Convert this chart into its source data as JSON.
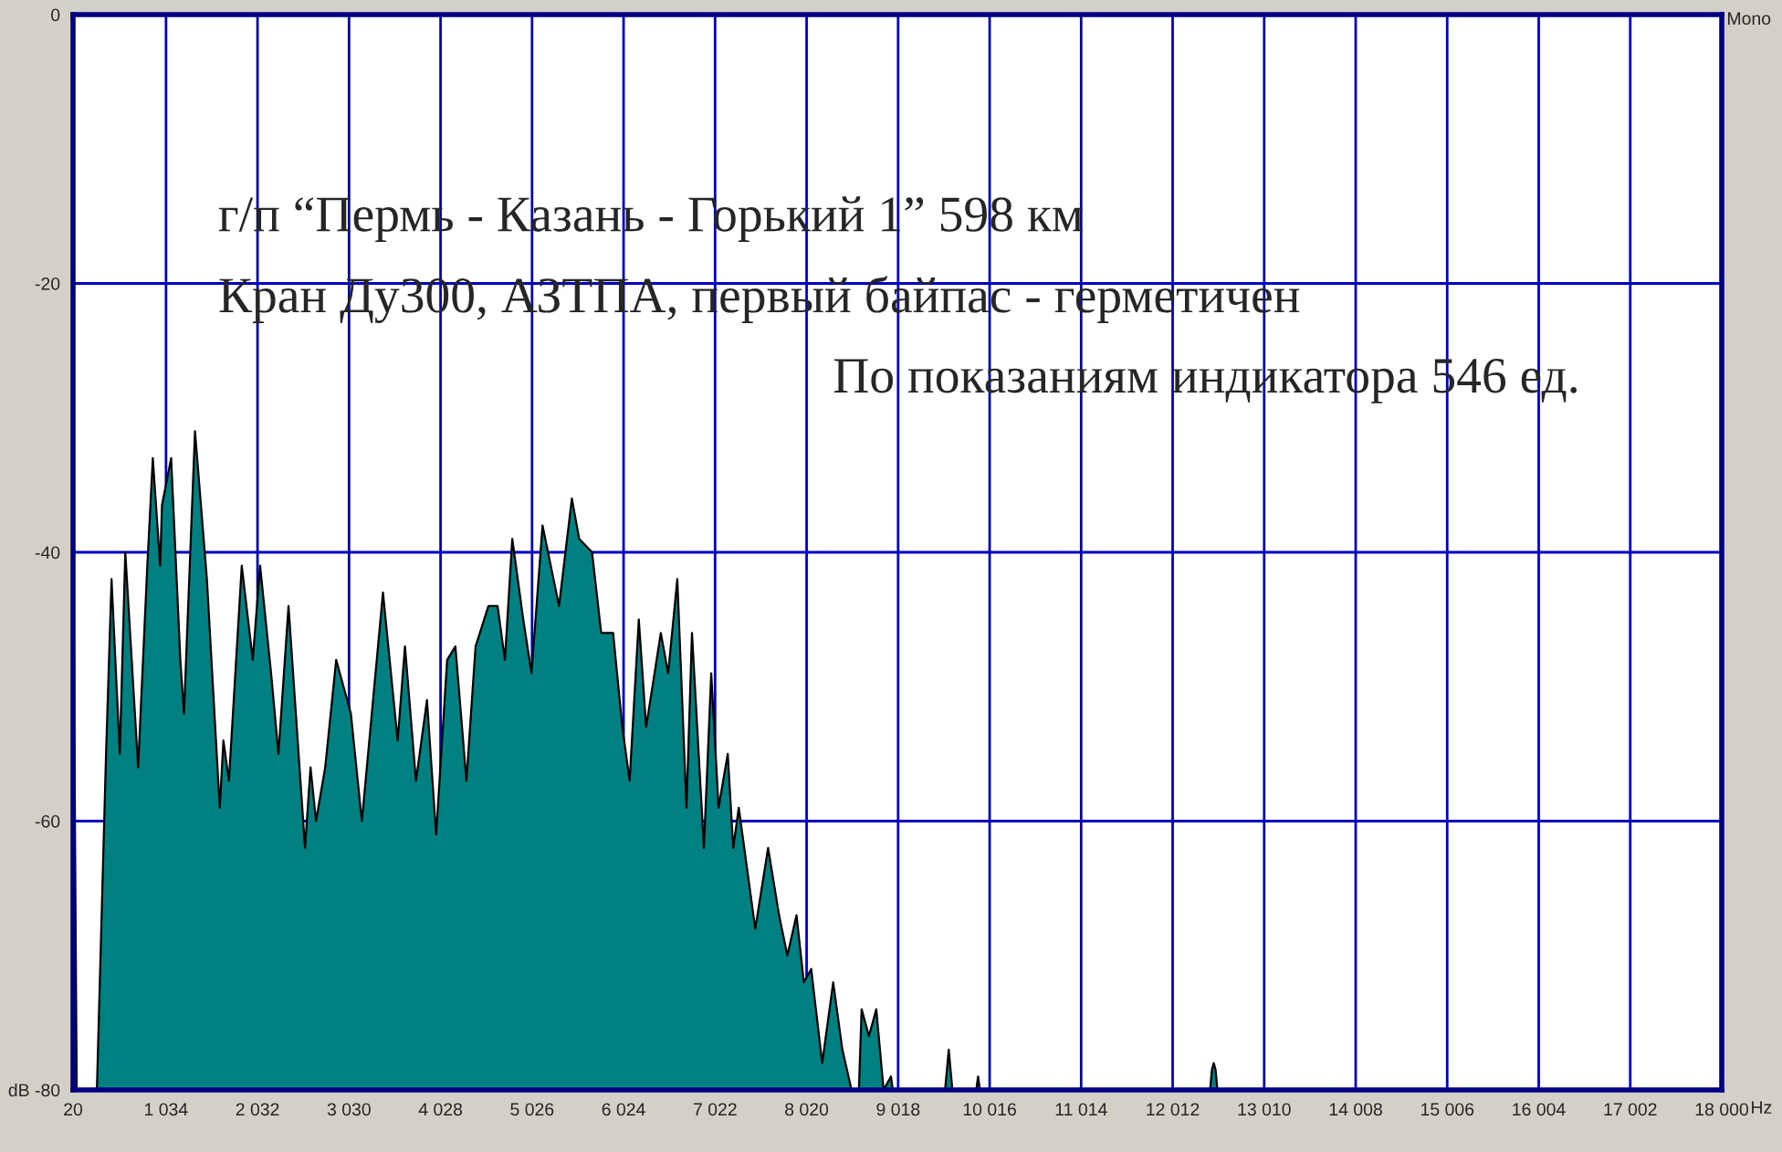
{
  "chart_data": {
    "type": "area",
    "annotations": [
      "г/п “Пермь - Казань - Горький 1” 598 км",
      "Кран Ду300, АЗТПА, первый байпас - герметичен",
      "По показаниям индикатора 546 ед.",
      "Mono"
    ],
    "xlabel": "Hz",
    "series": [
      {
        "color": "#008080",
        "x": [
          20,
          40,
          60,
          260,
          280,
          380,
          440,
          530,
          590,
          730,
          830,
          890,
          970,
          990,
          1090,
          1190,
          1230,
          1350,
          1480,
          1620,
          1660,
          1720,
          1860,
          1980,
          2060,
          2180,
          2260,
          2370,
          2550,
          2610,
          2670,
          2770,
          2890,
          3050,
          3170,
          3400,
          3560,
          3640,
          3760,
          3880,
          3980,
          4100,
          4190,
          4310,
          4410,
          4550,
          4650,
          4730,
          4810,
          4930,
          5020,
          5140,
          5320,
          5460,
          5540,
          5680,
          5780,
          5910,
          6010,
          6090,
          6190,
          6270,
          6430,
          6510,
          6610,
          6710,
          6770,
          6900,
          6980,
          7060,
          7160,
          7220,
          7280,
          7460,
          7600,
          7720,
          7810,
          7910,
          7990,
          8070,
          8190,
          8310,
          8410,
          8510,
          8590,
          8620,
          8700,
          8780,
          8860,
          8940,
          8960,
          9530,
          9570,
          9610,
          9870,
          9890,
          9910,
          12420,
          12440,
          12460,
          12480,
          12500,
          18000
        ],
        "values": [
          -36,
          -59,
          -80,
          -80,
          -80,
          -55,
          -42,
          -55,
          -40,
          -56,
          -41,
          -33,
          -41,
          -36.5,
          -33,
          -48,
          -52,
          -31,
          -42,
          -59,
          -54,
          -57,
          -41,
          -48,
          -41,
          -49,
          -55,
          -44,
          -62,
          -56,
          -60,
          -56,
          -48,
          -52,
          -60,
          -43,
          -54,
          -47,
          -57,
          -51,
          -61,
          -48,
          -47,
          -57,
          -47,
          -44,
          -44,
          -48,
          -39,
          -45,
          -49,
          -38,
          -44,
          -36,
          -39,
          -40,
          -46,
          -46,
          -53,
          -57,
          -45,
          -53,
          -46,
          -49,
          -42,
          -59,
          -46,
          -62,
          -49,
          -59,
          -55,
          -62,
          -59,
          -68,
          -62,
          -67,
          -70,
          -67,
          -72,
          -71,
          -78,
          -72,
          -77,
          -80,
          -80,
          -74,
          -76,
          -74,
          -80,
          -79,
          -80,
          -80,
          -77,
          -80,
          -80,
          -79,
          -80,
          -80,
          -78.5,
          -78,
          -78.5,
          -80,
          -80
        ]
      }
    ],
    "xlim": [
      20,
      18000
    ],
    "ylim": [
      -80,
      0
    ],
    "xticks": [
      20,
      {
        "value": 1034,
        "label": "1 034"
      },
      {
        "value": 2032,
        "label": "2 032"
      },
      {
        "value": 3030,
        "label": "3 030"
      },
      {
        "value": 4028,
        "label": "4 028"
      },
      {
        "value": 5026,
        "label": "5 026"
      },
      {
        "value": 6024,
        "label": "6 024"
      },
      {
        "value": 7022,
        "label": "7 022"
      },
      {
        "value": 8020,
        "label": "8 020"
      },
      {
        "value": 9018,
        "label": "9 018"
      },
      {
        "value": 10016,
        "label": "10 016"
      },
      {
        "value": 11014,
        "label": "11 014"
      },
      {
        "value": 12012,
        "label": "12 012"
      },
      {
        "value": 13010,
        "label": "13 010"
      },
      {
        "value": 14008,
        "label": "14 008"
      },
      {
        "value": 15006,
        "label": "15 006"
      },
      {
        "value": 16004,
        "label": "16 004"
      },
      {
        "value": 17002,
        "label": "17 002"
      },
      {
        "value": 18000,
        "label": "18 000"
      }
    ],
    "yticks": [
      {
        "value": -80,
        "label": "dB -80"
      },
      {
        "value": -60,
        "label": "-60"
      },
      {
        "value": -40,
        "label": "-40"
      },
      {
        "value": -20,
        "label": "-20"
      },
      {
        "value": 0,
        "label": "0"
      }
    ],
    "grid": true
  }
}
